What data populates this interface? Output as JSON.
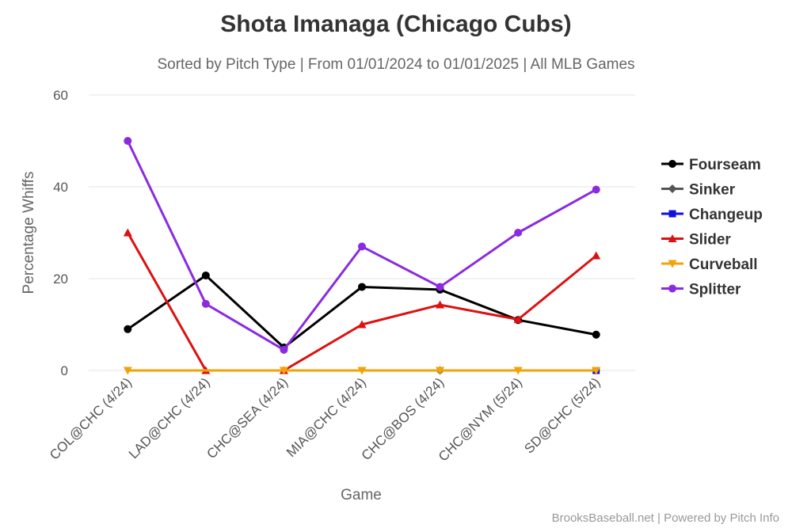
{
  "chart_data": {
    "type": "line",
    "title": "Shota Imanaga (Chicago Cubs)",
    "subtitle": "Sorted by Pitch Type | From 01/01/2024 to 01/01/2025 | All MLB Games",
    "xlabel": "Game",
    "ylabel": "Percentage Whiffs",
    "ylim": [
      0,
      60
    ],
    "yticks": [
      0,
      20,
      40,
      60
    ],
    "grid": true,
    "legend_position": "right",
    "categories": [
      "COL@CHC (4/24)",
      "LAD@CHC (4/24)",
      "CHC@SEA (4/24)",
      "MIA@CHC (4/24)",
      "CHC@BOS (4/24)",
      "CHC@NYM (5/24)",
      "SD@CHC (5/24)"
    ],
    "series": [
      {
        "name": "Fourseam",
        "color": "#000000",
        "marker": "circle",
        "values": [
          9,
          20.7,
          5,
          18.2,
          17.6,
          11,
          7.8
        ]
      },
      {
        "name": "Sinker",
        "color": "#555555",
        "marker": "diamond",
        "values": [
          null,
          null,
          null,
          null,
          0,
          null,
          null
        ]
      },
      {
        "name": "Changeup",
        "color": "#1111dd",
        "marker": "square",
        "values": [
          null,
          null,
          null,
          null,
          null,
          null,
          0
        ]
      },
      {
        "name": "Slider",
        "color": "#dd1111",
        "marker": "triangle",
        "values": [
          30,
          0,
          0,
          10,
          14.3,
          11.1,
          25
        ]
      },
      {
        "name": "Curveball",
        "color": "#f0a30a",
        "marker": "triangle-down",
        "values": [
          0,
          null,
          0,
          0,
          0,
          0,
          0
        ]
      },
      {
        "name": "Splitter",
        "color": "#8a2be2",
        "marker": "circle",
        "values": [
          50,
          14.5,
          4.5,
          27,
          18.2,
          30,
          39.4
        ]
      }
    ]
  },
  "credits": "BrooksBaseball.net | Powered by Pitch Info"
}
